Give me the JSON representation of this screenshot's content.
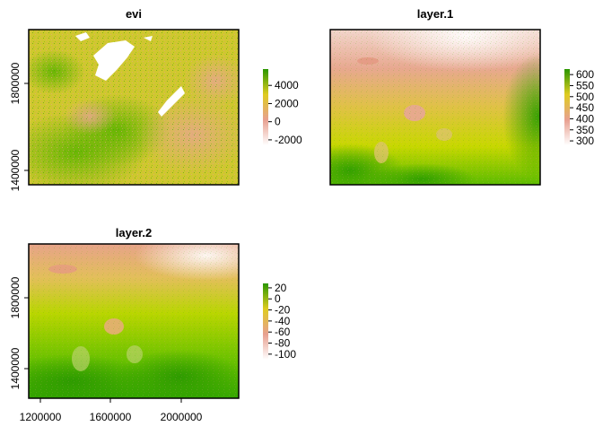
{
  "chart_data": [
    {
      "type": "heatmap",
      "title": "evi",
      "y_ticks": [
        "1400000",
        "1800000"
      ],
      "x_ticks": [],
      "legend": {
        "labels": [
          "4000",
          "2000",
          "0",
          "-2000"
        ],
        "range": [
          -2600,
          5800
        ],
        "colors": [
          "#ffffff",
          "#e8a090",
          "#dfcc20",
          "#2a9600"
        ]
      }
    },
    {
      "type": "heatmap",
      "title": "layer.1",
      "y_ticks": [],
      "x_ticks": [],
      "legend": {
        "labels": [
          "600",
          "550",
          "500",
          "450",
          "400",
          "350",
          "300"
        ],
        "range": [
          280,
          625
        ],
        "colors": [
          "#ffffff",
          "#e8a090",
          "#dfcc20",
          "#2a9600"
        ]
      }
    },
    {
      "type": "heatmap",
      "title": "layer.2",
      "y_ticks": [
        "1400000",
        "1800000"
      ],
      "x_ticks": [
        "1200000",
        "1600000",
        "2000000"
      ],
      "legend": {
        "labels": [
          "20",
          "0",
          "-20",
          "-40",
          "-60",
          "-80",
          "-100"
        ],
        "range": [
          -110,
          28
        ],
        "colors": [
          "#ffffff",
          "#e8a090",
          "#dfcc20",
          "#2a9600"
        ]
      }
    }
  ]
}
